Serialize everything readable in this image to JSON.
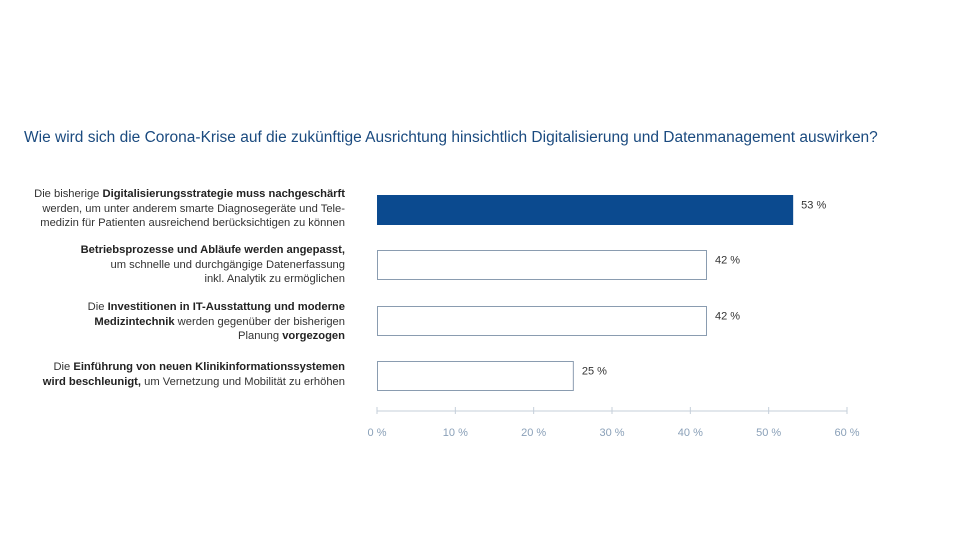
{
  "chart_data": {
    "type": "bar",
    "orientation": "horizontal",
    "title": "Wie wird sich die Corona-Krise auf die zukünftige Ausrichtung hinsichtlich Digitalisierung und Datenmanagement auswirken?",
    "categories": [
      [
        {
          "t": "Die bisherige ",
          "b": false
        },
        {
          "t": "Digitalisierungsstrategie muss nachgeschärft",
          "b": true
        },
        {
          "t": "\nwerden, um unter anderem smarte Diagnosegeräte und Tele-\nmedizin für Patienten ausreichend berücksichtigen zu können",
          "b": false
        }
      ],
      [
        {
          "t": "Betriebsprozesse und Abläufe werden angepasst,",
          "b": true
        },
        {
          "t": "\num schnelle und durchgängige Datenerfassung\ninkl. Analytik zu ermöglichen",
          "b": false
        }
      ],
      [
        {
          "t": "Die ",
          "b": false
        },
        {
          "t": "Investitionen in IT-Ausstattung und moderne\nMedizintechnik",
          "b": true
        },
        {
          "t": " werden gegenüber der bisherigen\nPlanung ",
          "b": false
        },
        {
          "t": "vorgezogen",
          "b": true
        }
      ],
      [
        {
          "t": "Die ",
          "b": false
        },
        {
          "t": "Einführung von neuen Klinikinformationssystemen\nwird beschleunigt,",
          "b": true
        },
        {
          "t": " um Vernetzung und Mobilität zu erhöhen",
          "b": false
        }
      ]
    ],
    "values": [
      53,
      42,
      42,
      25
    ],
    "value_labels": [
      "53 %",
      "42 %",
      "42 %",
      "25 %"
    ],
    "highlight_index": 0,
    "xlim": [
      0,
      60
    ],
    "xticks": [
      0,
      10,
      20,
      30,
      40,
      50,
      60
    ],
    "xtick_labels": [
      "0 %",
      "10 %",
      "20 %",
      "30 %",
      "40 %",
      "50 %",
      "60 %"
    ],
    "colors": {
      "highlight": "#0b4a8f",
      "outline": "#8a9cb0",
      "title": "#1a4a7f",
      "axis": "#c5cfda",
      "tick_text": "#8aa0b8"
    },
    "grid": false
  }
}
